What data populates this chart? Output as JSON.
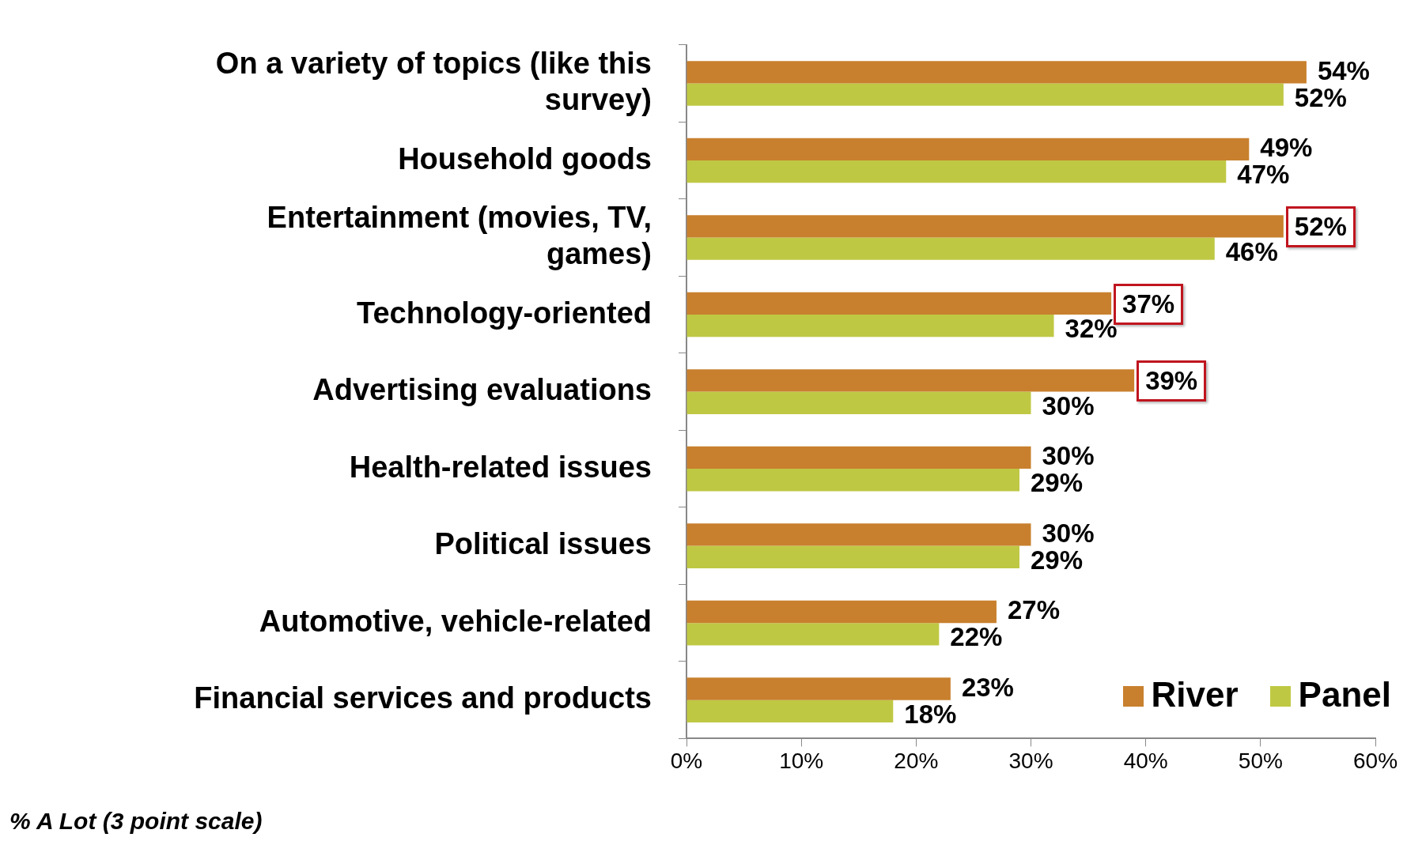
{
  "chart_data": {
    "type": "bar",
    "orientation": "horizontal",
    "categories": [
      "On a variety of topics (like this survey)",
      "Household goods",
      "Entertainment (movies, TV, games)",
      "Technology-oriented",
      "Advertising evaluations",
      "Health-related issues",
      "Political issues",
      "Automotive, vehicle-related",
      "Financial services and products"
    ],
    "series": [
      {
        "name": "River",
        "color": "#c8802e",
        "values": [
          54,
          49,
          52,
          37,
          39,
          30,
          30,
          27,
          23
        ],
        "value_labels": [
          "54%",
          "49%",
          null,
          null,
          null,
          "30%",
          "30%",
          "27%",
          "23%"
        ]
      },
      {
        "name": "Panel",
        "color": "#bfc843",
        "values": [
          52,
          47,
          46,
          32,
          30,
          29,
          29,
          22,
          18
        ],
        "value_labels": [
          "52%",
          "47%",
          "46%",
          "32%",
          "30%",
          "29%",
          "29%",
          "22%",
          "18%"
        ]
      }
    ],
    "xlim": [
      0,
      60
    ],
    "xticks": [
      {
        "value": 0,
        "label": "0%"
      },
      {
        "value": 10,
        "label": "10%"
      },
      {
        "value": 20,
        "label": "20%"
      },
      {
        "value": 30,
        "label": "30%"
      },
      {
        "value": 40,
        "label": "40%"
      },
      {
        "value": 50,
        "label": "50%"
      },
      {
        "value": 60,
        "label": "60%"
      }
    ],
    "grid": false,
    "legend": "bottom right",
    "annotations": [
      {
        "text": "52%",
        "x": 52,
        "y": "Entertainment (movies, TV, games)"
      },
      {
        "text": "37%",
        "x": 37,
        "y": "Technology-oriented"
      },
      {
        "text": "39%",
        "x": 39,
        "y": "Advertising evaluations"
      },
      "% A Lot (3 point scale)"
    ]
  }
}
